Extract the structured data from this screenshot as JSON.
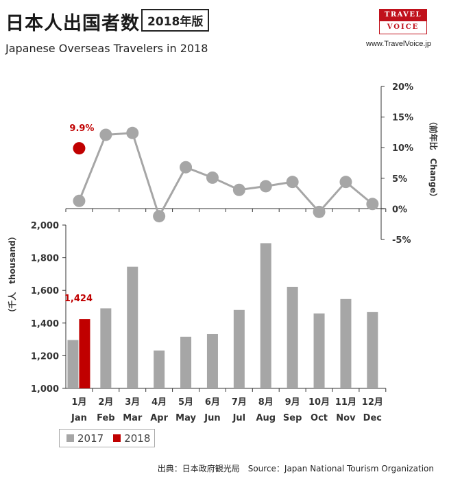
{
  "header": {
    "title_jp": "日本人出国者数",
    "badge": "2018年版",
    "title_en": "Japanese Overseas Travelers in 2018",
    "logo_top": "TRAVEL",
    "logo_bottom": "VOICE",
    "site": "www.TravelVoice.jp"
  },
  "legend": {
    "items": [
      {
        "label": "2017",
        "color": "#a6a6a6"
      },
      {
        "label": "2018",
        "color": "#c00000"
      }
    ]
  },
  "source": "出典：日本政府観光局　Source：Japan  National Tourism  Organization",
  "colors": {
    "series_2017": "#a6a6a6",
    "series_2018": "#c00000",
    "line": "#a6a6a6"
  },
  "chart_data": [
    {
      "type": "bar",
      "ylabel": "（千人　thousand）",
      "ylim": [
        1000,
        2000
      ],
      "yticks": [
        "1,000",
        "1,200",
        "1,400",
        "1,600",
        "1,800",
        "2,000"
      ],
      "ytick_values": [
        1000,
        1200,
        1400,
        1600,
        1800,
        2000
      ],
      "categories_jp": [
        "1月",
        "2月",
        "3月",
        "4月",
        "5月",
        "6月",
        "7月",
        "8月",
        "9月",
        "10月",
        "11月",
        "12月"
      ],
      "categories": [
        "Jan",
        "Feb",
        "Mar",
        "Apr",
        "May",
        "Jun",
        "Jul",
        "Aug",
        "Sep",
        "Oct",
        "Nov",
        "Dec"
      ],
      "series": [
        {
          "name": "2017",
          "values": [
            1296,
            1490,
            1745,
            1232,
            1316,
            1332,
            1480,
            1889,
            1622,
            1459,
            1547,
            1467
          ]
        },
        {
          "name": "2018",
          "values": [
            1424,
            null,
            null,
            null,
            null,
            null,
            null,
            null,
            null,
            null,
            null,
            null
          ],
          "labels": [
            "1,424"
          ]
        }
      ],
      "grid": false,
      "legend": "bottom-left"
    },
    {
      "type": "line",
      "ylabel": "（前年比　Change）",
      "ylim": [
        -5,
        20
      ],
      "yticks": [
        "20%",
        "15%",
        "10%",
        "5%",
        "0%",
        "-5%"
      ],
      "ytick_values": [
        20,
        15,
        10,
        5,
        0,
        -5
      ],
      "categories": [
        "Jan",
        "Feb",
        "Mar",
        "Apr",
        "May",
        "Jun",
        "Jul",
        "Aug",
        "Sep",
        "Oct",
        "Nov",
        "Dec"
      ],
      "series": [
        {
          "name": "2017",
          "values": [
            1.3,
            12.1,
            12.4,
            -1.2,
            6.8,
            5.1,
            3.1,
            3.7,
            4.4,
            -0.5,
            4.4,
            0.8
          ]
        },
        {
          "name": "2018",
          "values": [
            9.9,
            null,
            null,
            null,
            null,
            null,
            null,
            null,
            null,
            null,
            null,
            null
          ],
          "labels": [
            "9.9%"
          ]
        }
      ]
    }
  ]
}
